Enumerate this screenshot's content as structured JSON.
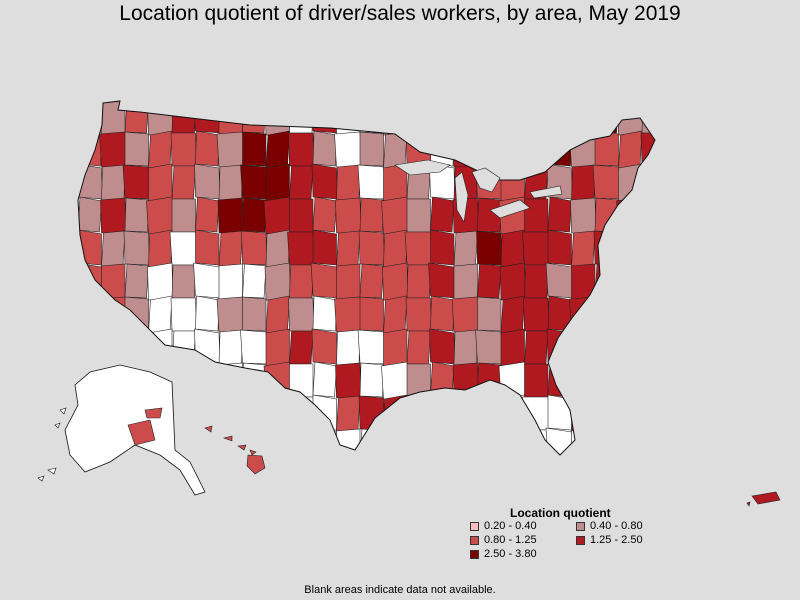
{
  "title": "Location quotient of driver/sales workers, by area, May 2019",
  "legend": {
    "title": "Location quotient",
    "items": [
      {
        "label": "0.20 - 0.40",
        "color": "#fbbcbc"
      },
      {
        "label": "0.40 - 0.80",
        "color": "#bf8d8d"
      },
      {
        "label": "0.80 - 1.25",
        "color": "#cc4c4c"
      },
      {
        "label": "1.25 - 2.50",
        "color": "#b0191f"
      },
      {
        "label": "2.50 - 3.80",
        "color": "#7a0000"
      }
    ]
  },
  "footnote": "Blank areas indicate data not available.",
  "colors": {
    "background": "#dedede",
    "no_data": "#ffffff",
    "border": "#222222"
  }
}
